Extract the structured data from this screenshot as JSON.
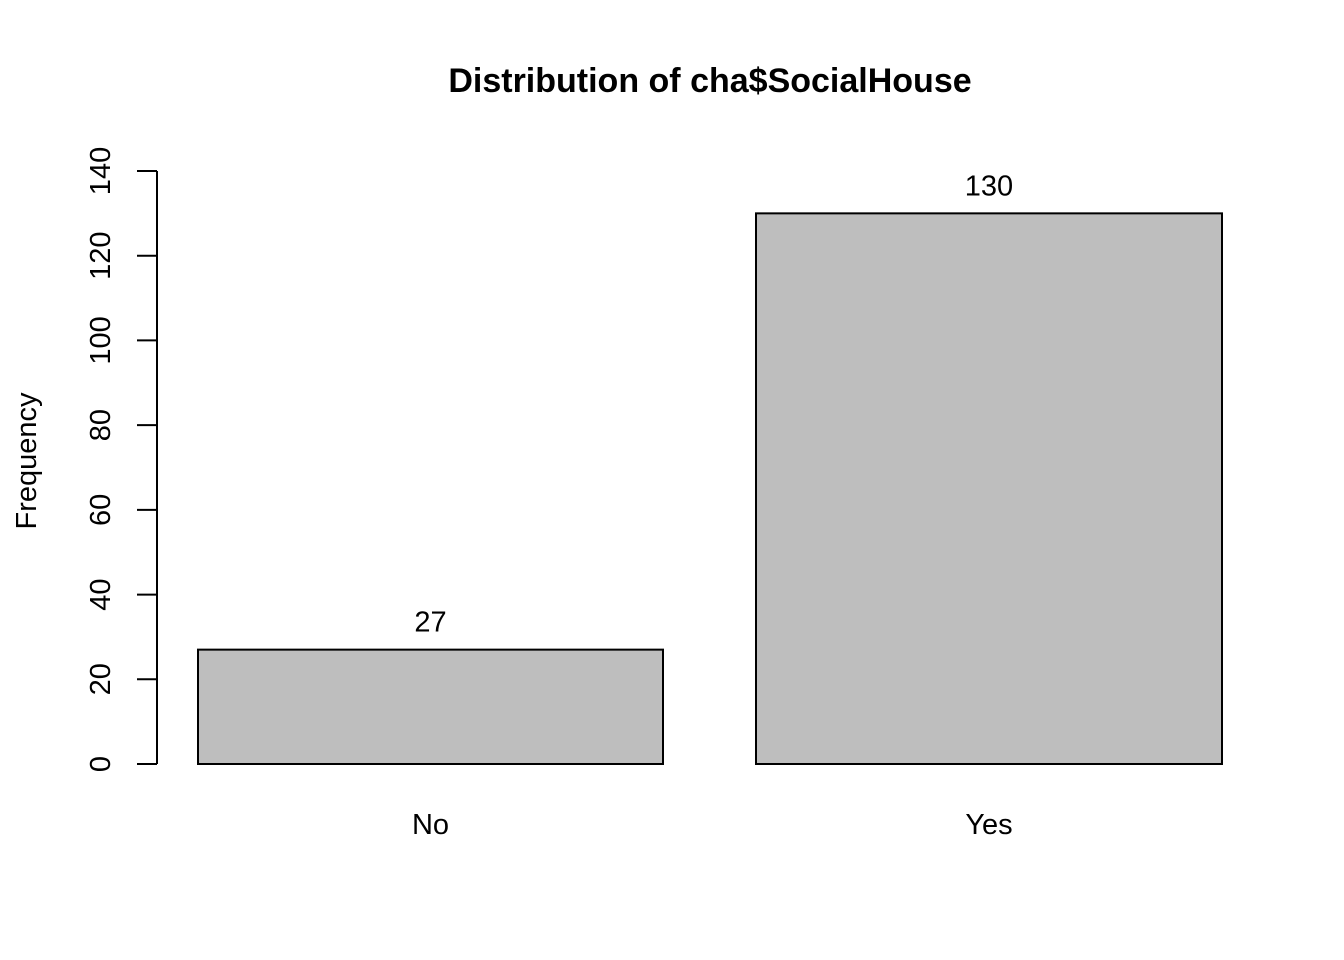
{
  "chart_data": {
    "type": "bar",
    "title": "Distribution of cha$SocialHouse",
    "xlabel": "",
    "ylabel": "Frequency",
    "categories": [
      "No",
      "Yes"
    ],
    "values": [
      27,
      130
    ],
    "data_labels": [
      "27",
      "130"
    ],
    "ylim": [
      0,
      140
    ],
    "yticks": [
      0,
      20,
      40,
      60,
      80,
      100,
      120,
      140
    ],
    "ytick_labels": [
      "0",
      "20",
      "40",
      "60",
      "80",
      "100",
      "120",
      "140"
    ],
    "grid": false,
    "legend": "none",
    "colors": {
      "bar_fill": "#bebebe",
      "bar_stroke": "#000000",
      "axis": "#000000",
      "text": "#000000",
      "background": "#ffffff"
    }
  }
}
